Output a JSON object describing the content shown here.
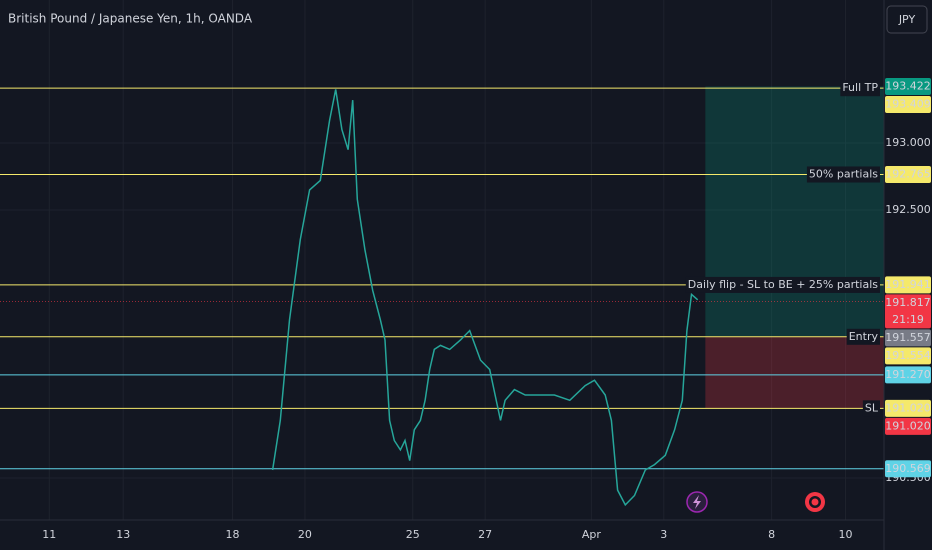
{
  "chart_data": {
    "type": "line",
    "title": "British Pound / Japanese Yen, 1h, OANDA",
    "currency": "JPY",
    "x": [
      177,
      182,
      188,
      195,
      201,
      208,
      214,
      218,
      222,
      226,
      229,
      232,
      237,
      242,
      247,
      250,
      253,
      256,
      260,
      263,
      266,
      269,
      273,
      276,
      279,
      282,
      286,
      292,
      299,
      305,
      312,
      318,
      325,
      328,
      334,
      341,
      351,
      360,
      370,
      380,
      386,
      393,
      397,
      401,
      406,
      412,
      419,
      425,
      432,
      438,
      443,
      446,
      449,
      453
    ],
    "values": [
      190.56,
      190.93,
      191.68,
      192.28,
      192.65,
      192.72,
      193.17,
      193.4,
      193.1,
      192.95,
      193.32,
      192.58,
      192.2,
      191.9,
      191.68,
      191.53,
      190.93,
      190.78,
      190.71,
      190.78,
      190.63,
      190.86,
      190.93,
      191.08,
      191.31,
      191.46,
      191.49,
      191.46,
      191.53,
      191.6,
      191.38,
      191.31,
      190.93,
      191.08,
      191.16,
      191.12,
      191.12,
      191.12,
      191.08,
      191.19,
      191.23,
      191.12,
      190.93,
      190.41,
      190.3,
      190.37,
      190.56,
      190.6,
      190.67,
      190.86,
      191.08,
      191.6,
      191.87,
      191.83
    ],
    "color": "#26a69a",
    "xlim": [
      0,
      574
    ],
    "xticks": [
      {
        "value": 32,
        "label": "11"
      },
      {
        "value": 80,
        "label": "13"
      },
      {
        "value": 151,
        "label": "18"
      },
      {
        "value": 198,
        "label": "20"
      },
      {
        "value": 268,
        "label": "25"
      },
      {
        "value": 315,
        "label": "27"
      },
      {
        "value": 384,
        "label": "Apr"
      },
      {
        "value": 431,
        "label": "3"
      },
      {
        "value": 501,
        "label": "8"
      },
      {
        "value": 549,
        "label": "10"
      }
    ],
    "ylim": [
      190.187,
      194.067
    ],
    "yticks": [
      {
        "value": 193.0,
        "label": "193.000"
      },
      {
        "value": 192.5,
        "label": "192.500"
      },
      {
        "value": 190.5,
        "label": "190.500"
      }
    ],
    "grid": true,
    "levels": [
      {
        "name": "Full TP",
        "value": 193.409,
        "color": "#f5e96b"
      },
      {
        "name": "50% partials",
        "value": 192.765,
        "color": "#f5e96b"
      },
      {
        "name": "Daily flip - SL to BE + 25% partials",
        "value": 191.941,
        "color": "#f5e96b"
      },
      {
        "name": "Entry",
        "value": 191.554,
        "color": "#f5e96b"
      },
      {
        "value": 191.27,
        "value_label": "191.270",
        "color": "#5fd3e6"
      },
      {
        "name": "SL",
        "value": 191.02,
        "value_label": "191.020",
        "color": "#f5e96b"
      },
      {
        "value": 190.569,
        "color": "#5fd3e6"
      }
    ],
    "current_price": {
      "value": 191.817,
      "countdown": "21:19",
      "color": "#f23645"
    },
    "position": {
      "start": 458,
      "target": 193.422,
      "entry": 191.557,
      "stop": 191.02,
      "stop_label": "191.020",
      "target_color": "#089981",
      "entry_color": "#787b86",
      "stop_color": "#f23645"
    }
  }
}
